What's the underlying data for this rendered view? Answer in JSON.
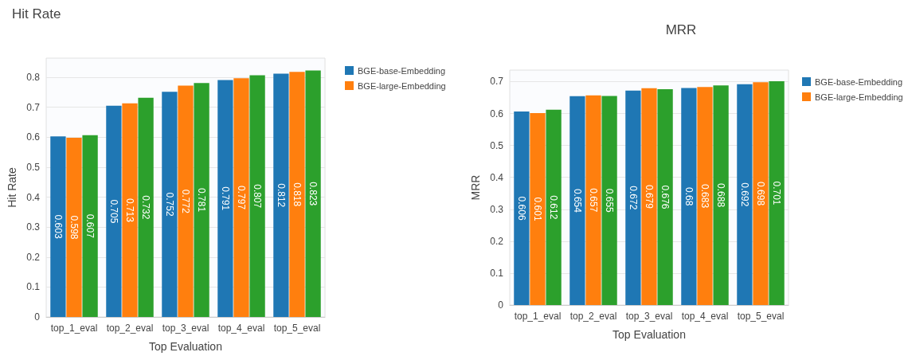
{
  "chart_data": [
    {
      "type": "bar",
      "title": "Hit Rate",
      "xlabel": "Top Evaluation",
      "ylabel": "Hit Rate",
      "categories": [
        "top_1_eval",
        "top_2_eval",
        "top_3_eval",
        "top_4_eval",
        "top_5_eval"
      ],
      "series": [
        {
          "name": "BGE-base-Embedding",
          "color": "#1f77b4",
          "values": [
            0.603,
            0.705,
            0.752,
            0.791,
            0.812
          ]
        },
        {
          "name": "BGE-large-Embedding",
          "color": "#ff7f0e",
          "values": [
            0.598,
            0.713,
            0.772,
            0.797,
            0.818
          ]
        },
        {
          "color": "#2ca02c",
          "values": [
            0.607,
            0.732,
            0.781,
            0.807,
            0.823
          ]
        }
      ],
      "ylim": [
        0,
        0.864
      ],
      "yticks": [
        0,
        0.1,
        0.2,
        0.3,
        0.4,
        0.5,
        0.6,
        0.7,
        0.8
      ],
      "grid": "y",
      "legend": "top right",
      "data_labels": true
    },
    {
      "type": "bar",
      "title": "MRR",
      "xlabel": "Top Evaluation",
      "ylabel": "MRR",
      "categories": [
        "top_1_eval",
        "top_2_eval",
        "top_3_eval",
        "top_4_eval",
        "top_5_eval"
      ],
      "series": [
        {
          "name": "BGE-base-Embedding",
          "color": "#1f77b4",
          "values": [
            0.606,
            0.654,
            0.672,
            0.68,
            0.692
          ]
        },
        {
          "name": "BGE-large-Embedding",
          "color": "#ff7f0e",
          "values": [
            0.601,
            0.657,
            0.679,
            0.683,
            0.698
          ]
        },
        {
          "color": "#2ca02c",
          "values": [
            0.612,
            0.655,
            0.676,
            0.688,
            0.701
          ]
        }
      ],
      "ylim": [
        0,
        0.736
      ],
      "yticks": [
        0,
        0.1,
        0.2,
        0.3,
        0.4,
        0.5,
        0.6,
        0.7
      ],
      "grid": "y",
      "legend": "top right",
      "data_labels": true
    }
  ]
}
